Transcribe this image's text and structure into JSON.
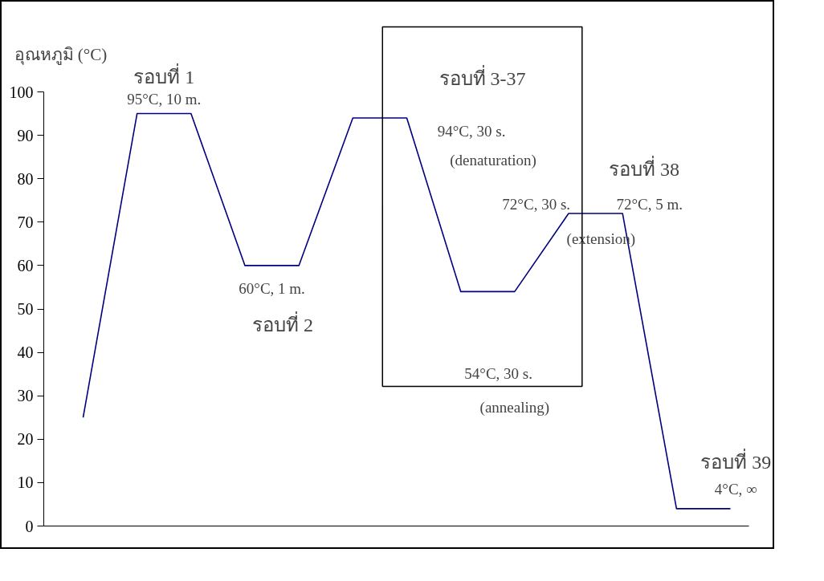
{
  "chart_data": {
    "type": "line",
    "ylabel": "อุณหภูมิ (°C)",
    "categories": [
      null,
      null,
      null,
      null,
      null,
      null,
      null,
      null,
      null,
      null,
      null,
      null,
      null
    ],
    "series": [
      {
        "color": "#000080",
        "values": [
          25,
          95,
          95,
          60,
          60,
          94,
          94,
          54,
          54,
          72,
          72,
          4,
          4
        ]
      }
    ],
    "ylim": [
      0,
      100
    ],
    "yticks": [
      0,
      10,
      20,
      30,
      40,
      50,
      60,
      70,
      80,
      90,
      100
    ],
    "tick_labels": "y",
    "grid": false,
    "marker": "none",
    "line_style": "solid",
    "annotations": [
      "รอบที่ 1",
      "95°C, 10 m.",
      "รอบที่ 3-37",
      "94°C, 30 s.",
      "(denaturation)",
      "รอบที่ 38",
      "72°C, 30 s.",
      "72°C, 5 m.",
      "(extension)",
      "60°C, 1 m.",
      "รอบที่ 2",
      "54°C, 30 s.",
      "(annealing)",
      "รอบที่ 39",
      "4°C, ∞"
    ]
  }
}
